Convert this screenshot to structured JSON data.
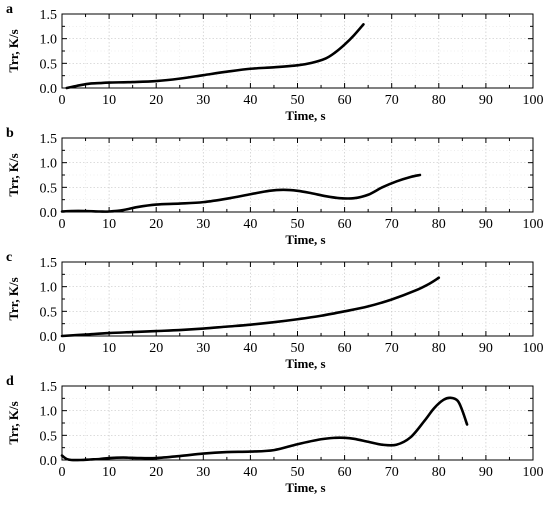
{
  "chart_data": [
    {
      "panel": "a",
      "type": "line",
      "xlabel": "Time, s",
      "ylabel": "Trr, K/s",
      "xlim": [
        0,
        100
      ],
      "ylim": [
        0,
        1.5
      ],
      "xticks": [
        0,
        10,
        20,
        30,
        40,
        50,
        60,
        70,
        80,
        90,
        100
      ],
      "yticks": [
        0.0,
        0.5,
        1.0,
        1.5
      ],
      "ytick_labels": [
        "0.0",
        "0.5",
        "1.0",
        "1.5"
      ],
      "grid": true,
      "series": [
        {
          "color": "#000000",
          "x": [
            1,
            2,
            4,
            6,
            8,
            10,
            15,
            20,
            25,
            30,
            35,
            40,
            45,
            50,
            53,
            56,
            58,
            60,
            62,
            64
          ],
          "y": [
            0.0,
            0.02,
            0.06,
            0.09,
            0.1,
            0.11,
            0.12,
            0.14,
            0.19,
            0.26,
            0.33,
            0.39,
            0.42,
            0.46,
            0.51,
            0.6,
            0.72,
            0.88,
            1.07,
            1.29
          ]
        }
      ]
    },
    {
      "panel": "b",
      "type": "line",
      "xlabel": "Time, s",
      "ylabel": "Trr, K/s",
      "xlim": [
        0,
        100
      ],
      "ylim": [
        0,
        1.5
      ],
      "xticks": [
        0,
        10,
        20,
        30,
        40,
        50,
        60,
        70,
        80,
        90,
        100
      ],
      "yticks": [
        0.0,
        0.5,
        1.0,
        1.5
      ],
      "ytick_labels": [
        "0.0",
        "0.5",
        "1.0",
        "1.5"
      ],
      "grid": true,
      "series": [
        {
          "color": "#000000",
          "x": [
            0,
            2,
            5,
            8,
            10,
            13,
            16,
            20,
            25,
            30,
            35,
            40,
            44,
            47,
            50,
            53,
            56,
            59,
            62,
            65,
            68,
            71,
            74,
            76
          ],
          "y": [
            0.01,
            0.02,
            0.02,
            0.01,
            0.01,
            0.04,
            0.1,
            0.15,
            0.17,
            0.2,
            0.27,
            0.36,
            0.43,
            0.45,
            0.43,
            0.38,
            0.32,
            0.28,
            0.28,
            0.35,
            0.5,
            0.62,
            0.71,
            0.75
          ]
        }
      ]
    },
    {
      "panel": "c",
      "type": "line",
      "xlabel": "Time, s",
      "ylabel": "Trr, K/s",
      "xlim": [
        0,
        100
      ],
      "ylim": [
        0,
        1.5
      ],
      "xticks": [
        0,
        10,
        20,
        30,
        40,
        50,
        60,
        70,
        80,
        90,
        100
      ],
      "yticks": [
        0.0,
        0.5,
        1.0,
        1.5
      ],
      "ytick_labels": [
        "0.0",
        "0.5",
        "1.0",
        "1.5"
      ],
      "grid": true,
      "series": [
        {
          "color": "#000000",
          "x": [
            0,
            5,
            10,
            15,
            20,
            25,
            30,
            35,
            40,
            45,
            50,
            55,
            60,
            65,
            70,
            75,
            78,
            80
          ],
          "y": [
            0.0,
            0.03,
            0.06,
            0.08,
            0.1,
            0.12,
            0.15,
            0.19,
            0.23,
            0.28,
            0.34,
            0.41,
            0.5,
            0.6,
            0.74,
            0.92,
            1.06,
            1.18
          ]
        }
      ]
    },
    {
      "panel": "d",
      "type": "line",
      "xlabel": "Time, s",
      "ylabel": "Trr, K/s",
      "xlim": [
        0,
        100
      ],
      "ylim": [
        0,
        1.5
      ],
      "xticks": [
        0,
        10,
        20,
        30,
        40,
        50,
        60,
        70,
        80,
        90,
        100
      ],
      "yticks": [
        0.0,
        0.5,
        1.0,
        1.5
      ],
      "ytick_labels": [
        "0.0",
        "0.5",
        "1.0",
        "1.5"
      ],
      "grid": true,
      "series": [
        {
          "color": "#000000",
          "x": [
            0,
            1,
            2,
            4,
            6,
            8,
            10,
            13,
            16,
            20,
            25,
            30,
            35,
            40,
            45,
            50,
            55,
            58,
            60,
            62,
            65,
            68,
            71,
            74,
            77,
            79,
            81,
            82.5,
            84,
            85,
            86
          ],
          "y": [
            0.09,
            0.02,
            0.0,
            0.0,
            0.01,
            0.02,
            0.04,
            0.05,
            0.04,
            0.04,
            0.08,
            0.13,
            0.16,
            0.17,
            0.2,
            0.32,
            0.42,
            0.45,
            0.45,
            0.43,
            0.37,
            0.31,
            0.31,
            0.46,
            0.8,
            1.05,
            1.22,
            1.26,
            1.2,
            1.0,
            0.72
          ]
        }
      ]
    }
  ]
}
